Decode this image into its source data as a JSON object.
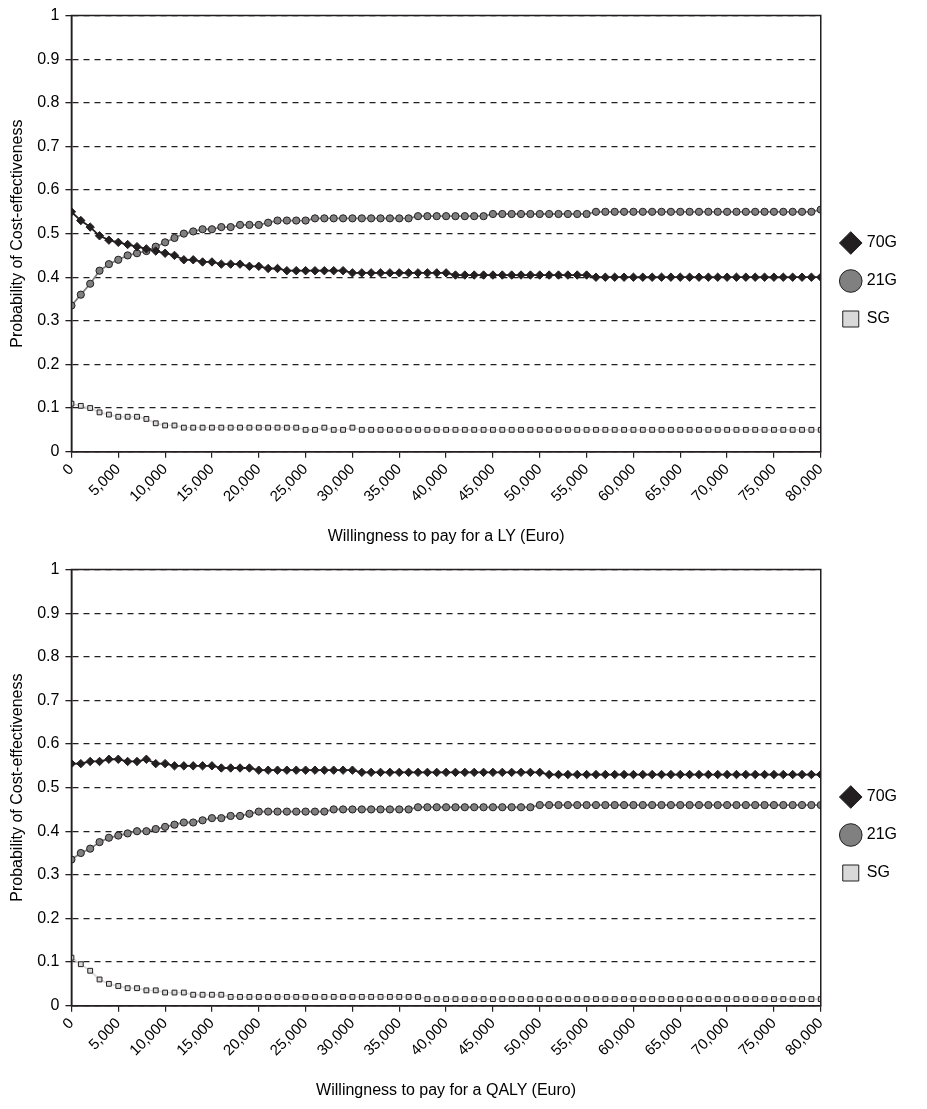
{
  "chart_data": [
    {
      "type": "line",
      "xlabel": "Willingness to pay for a LY (Euro)",
      "ylabel": "Probability of Cost-effectiveness",
      "x": [
        0,
        1000,
        2000,
        3000,
        4000,
        5000,
        6000,
        7000,
        8000,
        9000,
        10000,
        11000,
        12000,
        13000,
        14000,
        15000,
        16000,
        17000,
        18000,
        19000,
        20000,
        21000,
        22000,
        23000,
        24000,
        25000,
        26000,
        27000,
        28000,
        29000,
        30000,
        31000,
        32000,
        33000,
        34000,
        35000,
        36000,
        37000,
        38000,
        39000,
        40000,
        41000,
        42000,
        43000,
        44000,
        45000,
        46000,
        47000,
        48000,
        49000,
        50000,
        51000,
        52000,
        53000,
        54000,
        55000,
        56000,
        57000,
        58000,
        59000,
        60000,
        61000,
        62000,
        63000,
        64000,
        65000,
        66000,
        67000,
        68000,
        69000,
        70000,
        71000,
        72000,
        73000,
        74000,
        75000,
        76000,
        77000,
        78000,
        79000,
        80000
      ],
      "series": [
        {
          "name": "70G",
          "color": "#231f20",
          "marker": "diamond",
          "values": [
            0.55,
            0.53,
            0.515,
            0.495,
            0.485,
            0.48,
            0.475,
            0.47,
            0.465,
            0.46,
            0.455,
            0.45,
            0.44,
            0.44,
            0.435,
            0.435,
            0.43,
            0.43,
            0.43,
            0.425,
            0.425,
            0.42,
            0.42,
            0.415,
            0.415,
            0.415,
            0.415,
            0.415,
            0.415,
            0.415,
            0.41,
            0.41,
            0.41,
            0.41,
            0.41,
            0.41,
            0.41,
            0.41,
            0.41,
            0.41,
            0.41,
            0.405,
            0.405,
            0.405,
            0.405,
            0.405,
            0.405,
            0.405,
            0.405,
            0.405,
            0.405,
            0.405,
            0.405,
            0.405,
            0.405,
            0.405,
            0.4,
            0.4,
            0.4,
            0.4,
            0.4,
            0.4,
            0.4,
            0.4,
            0.4,
            0.4,
            0.4,
            0.4,
            0.4,
            0.4,
            0.4,
            0.4,
            0.4,
            0.4,
            0.4,
            0.4,
            0.4,
            0.4,
            0.4,
            0.4,
            0.4
          ]
        },
        {
          "name": "21G",
          "color": "#808080",
          "marker": "circle",
          "values": [
            0.335,
            0.36,
            0.385,
            0.415,
            0.43,
            0.44,
            0.45,
            0.455,
            0.46,
            0.47,
            0.48,
            0.49,
            0.5,
            0.505,
            0.51,
            0.51,
            0.515,
            0.515,
            0.52,
            0.52,
            0.52,
            0.525,
            0.53,
            0.53,
            0.53,
            0.53,
            0.535,
            0.535,
            0.535,
            0.535,
            0.535,
            0.535,
            0.535,
            0.535,
            0.535,
            0.535,
            0.535,
            0.54,
            0.54,
            0.54,
            0.54,
            0.54,
            0.54,
            0.54,
            0.54,
            0.545,
            0.545,
            0.545,
            0.545,
            0.545,
            0.545,
            0.545,
            0.545,
            0.545,
            0.545,
            0.545,
            0.55,
            0.55,
            0.55,
            0.55,
            0.55,
            0.55,
            0.55,
            0.55,
            0.55,
            0.55,
            0.55,
            0.55,
            0.55,
            0.55,
            0.55,
            0.55,
            0.55,
            0.55,
            0.55,
            0.55,
            0.55,
            0.55,
            0.55,
            0.55,
            0.555
          ]
        },
        {
          "name": "SG",
          "color": "#d9d9d9",
          "marker": "square",
          "values": [
            0.11,
            0.105,
            0.1,
            0.09,
            0.085,
            0.08,
            0.08,
            0.08,
            0.075,
            0.065,
            0.06,
            0.06,
            0.055,
            0.055,
            0.055,
            0.055,
            0.055,
            0.055,
            0.055,
            0.055,
            0.055,
            0.055,
            0.055,
            0.055,
            0.055,
            0.05,
            0.05,
            0.055,
            0.05,
            0.05,
            0.055,
            0.05,
            0.05,
            0.05,
            0.05,
            0.05,
            0.05,
            0.05,
            0.05,
            0.05,
            0.05,
            0.05,
            0.05,
            0.05,
            0.05,
            0.05,
            0.05,
            0.05,
            0.05,
            0.05,
            0.05,
            0.05,
            0.05,
            0.05,
            0.05,
            0.05,
            0.05,
            0.05,
            0.05,
            0.05,
            0.05,
            0.05,
            0.05,
            0.05,
            0.05,
            0.05,
            0.05,
            0.05,
            0.05,
            0.05,
            0.05,
            0.05,
            0.05,
            0.05,
            0.05,
            0.05,
            0.05,
            0.05,
            0.05,
            0.05,
            0.05
          ]
        }
      ],
      "xlim": [
        0,
        80000
      ],
      "xticks": [
        0,
        {
          "value": 5000,
          "label": "5,000"
        },
        {
          "value": 10000,
          "label": "10,000"
        },
        {
          "value": 15000,
          "label": "15,000"
        },
        {
          "value": 20000,
          "label": "20,000"
        },
        {
          "value": 25000,
          "label": "25,000"
        },
        {
          "value": 30000,
          "label": "30,000"
        },
        {
          "value": 35000,
          "label": "35,000"
        },
        {
          "value": 40000,
          "label": "40,000"
        },
        {
          "value": 45000,
          "label": "45,000"
        },
        {
          "value": 50000,
          "label": "50,000"
        },
        {
          "value": 55000,
          "label": "55,000"
        },
        {
          "value": 60000,
          "label": "60,000"
        },
        {
          "value": 65000,
          "label": "65,000"
        },
        {
          "value": 70000,
          "label": "70,000"
        },
        {
          "value": 75000,
          "label": "75,000"
        },
        {
          "value": 80000,
          "label": "80,000"
        }
      ],
      "ylim": [
        0,
        1
      ],
      "yticks": [
        0,
        0.1,
        0.2,
        0.3,
        0.4,
        0.5,
        0.6,
        0.7,
        0.8,
        0.9,
        1
      ],
      "grid": "y",
      "legend": "right",
      "line_style": "solid"
    },
    {
      "type": "line",
      "xlabel": "Willingness to pay for a QALY (Euro)",
      "ylabel": "Probability of Cost-effectiveness",
      "x": [
        0,
        1000,
        2000,
        3000,
        4000,
        5000,
        6000,
        7000,
        8000,
        9000,
        10000,
        11000,
        12000,
        13000,
        14000,
        15000,
        16000,
        17000,
        18000,
        19000,
        20000,
        21000,
        22000,
        23000,
        24000,
        25000,
        26000,
        27000,
        28000,
        29000,
        30000,
        31000,
        32000,
        33000,
        34000,
        35000,
        36000,
        37000,
        38000,
        39000,
        40000,
        41000,
        42000,
        43000,
        44000,
        45000,
        46000,
        47000,
        48000,
        49000,
        50000,
        51000,
        52000,
        53000,
        54000,
        55000,
        56000,
        57000,
        58000,
        59000,
        60000,
        61000,
        62000,
        63000,
        64000,
        65000,
        66000,
        67000,
        68000,
        69000,
        70000,
        71000,
        72000,
        73000,
        74000,
        75000,
        76000,
        77000,
        78000,
        79000,
        80000
      ],
      "series": [
        {
          "name": "70G",
          "color": "#231f20",
          "marker": "diamond",
          "values": [
            0.555,
            0.555,
            0.56,
            0.56,
            0.565,
            0.565,
            0.56,
            0.56,
            0.565,
            0.555,
            0.555,
            0.55,
            0.55,
            0.55,
            0.55,
            0.55,
            0.545,
            0.545,
            0.545,
            0.545,
            0.54,
            0.54,
            0.54,
            0.54,
            0.54,
            0.54,
            0.54,
            0.54,
            0.54,
            0.54,
            0.54,
            0.535,
            0.535,
            0.535,
            0.535,
            0.535,
            0.535,
            0.535,
            0.535,
            0.535,
            0.535,
            0.535,
            0.535,
            0.535,
            0.535,
            0.535,
            0.535,
            0.535,
            0.535,
            0.535,
            0.535,
            0.53,
            0.53,
            0.53,
            0.53,
            0.53,
            0.53,
            0.53,
            0.53,
            0.53,
            0.53,
            0.53,
            0.53,
            0.53,
            0.53,
            0.53,
            0.53,
            0.53,
            0.53,
            0.53,
            0.53,
            0.53,
            0.53,
            0.53,
            0.53,
            0.53,
            0.53,
            0.53,
            0.53,
            0.53,
            0.53
          ]
        },
        {
          "name": "21G",
          "color": "#808080",
          "marker": "circle",
          "values": [
            0.335,
            0.35,
            0.36,
            0.375,
            0.385,
            0.39,
            0.395,
            0.4,
            0.4,
            0.405,
            0.41,
            0.415,
            0.42,
            0.42,
            0.425,
            0.43,
            0.43,
            0.435,
            0.435,
            0.44,
            0.445,
            0.445,
            0.445,
            0.445,
            0.445,
            0.445,
            0.445,
            0.445,
            0.45,
            0.45,
            0.45,
            0.45,
            0.45,
            0.45,
            0.45,
            0.45,
            0.45,
            0.455,
            0.455,
            0.455,
            0.455,
            0.455,
            0.455,
            0.455,
            0.455,
            0.455,
            0.455,
            0.455,
            0.455,
            0.455,
            0.46,
            0.46,
            0.46,
            0.46,
            0.46,
            0.46,
            0.46,
            0.46,
            0.46,
            0.46,
            0.46,
            0.46,
            0.46,
            0.46,
            0.46,
            0.46,
            0.46,
            0.46,
            0.46,
            0.46,
            0.46,
            0.46,
            0.46,
            0.46,
            0.46,
            0.46,
            0.46,
            0.46,
            0.46,
            0.46,
            0.46
          ]
        },
        {
          "name": "SG",
          "color": "#d9d9d9",
          "marker": "square",
          "values": [
            0.11,
            0.095,
            0.08,
            0.06,
            0.05,
            0.045,
            0.04,
            0.04,
            0.035,
            0.035,
            0.03,
            0.03,
            0.03,
            0.025,
            0.025,
            0.025,
            0.025,
            0.02,
            0.02,
            0.02,
            0.02,
            0.02,
            0.02,
            0.02,
            0.02,
            0.02,
            0.02,
            0.02,
            0.02,
            0.02,
            0.02,
            0.02,
            0.02,
            0.02,
            0.02,
            0.02,
            0.02,
            0.02,
            0.015,
            0.015,
            0.015,
            0.015,
            0.015,
            0.015,
            0.015,
            0.015,
            0.015,
            0.015,
            0.015,
            0.015,
            0.015,
            0.015,
            0.015,
            0.015,
            0.015,
            0.015,
            0.015,
            0.015,
            0.015,
            0.015,
            0.015,
            0.015,
            0.015,
            0.015,
            0.015,
            0.015,
            0.015,
            0.015,
            0.015,
            0.015,
            0.015,
            0.015,
            0.015,
            0.015,
            0.015,
            0.015,
            0.015,
            0.015,
            0.015,
            0.015,
            0.015
          ]
        }
      ],
      "xlim": [
        0,
        80000
      ],
      "xticks": [
        0,
        {
          "value": 5000,
          "label": "5,000"
        },
        {
          "value": 10000,
          "label": "10,000"
        },
        {
          "value": 15000,
          "label": "15,000"
        },
        {
          "value": 20000,
          "label": "20,000"
        },
        {
          "value": 25000,
          "label": "25,000"
        },
        {
          "value": 30000,
          "label": "30,000"
        },
        {
          "value": 35000,
          "label": "35,000"
        },
        {
          "value": 40000,
          "label": "40,000"
        },
        {
          "value": 45000,
          "label": "45,000"
        },
        {
          "value": 50000,
          "label": "50,000"
        },
        {
          "value": 55000,
          "label": "55,000"
        },
        {
          "value": 60000,
          "label": "60,000"
        },
        {
          "value": 65000,
          "label": "65,000"
        },
        {
          "value": 70000,
          "label": "70,000"
        },
        {
          "value": 75000,
          "label": "75,000"
        },
        {
          "value": 80000,
          "label": "80,000"
        }
      ],
      "ylim": [
        0,
        1
      ],
      "yticks": [
        0,
        0.1,
        0.2,
        0.3,
        0.4,
        0.5,
        0.6,
        0.7,
        0.8,
        0.9,
        1
      ],
      "grid": "y",
      "legend": "right",
      "line_style": "solid"
    }
  ]
}
